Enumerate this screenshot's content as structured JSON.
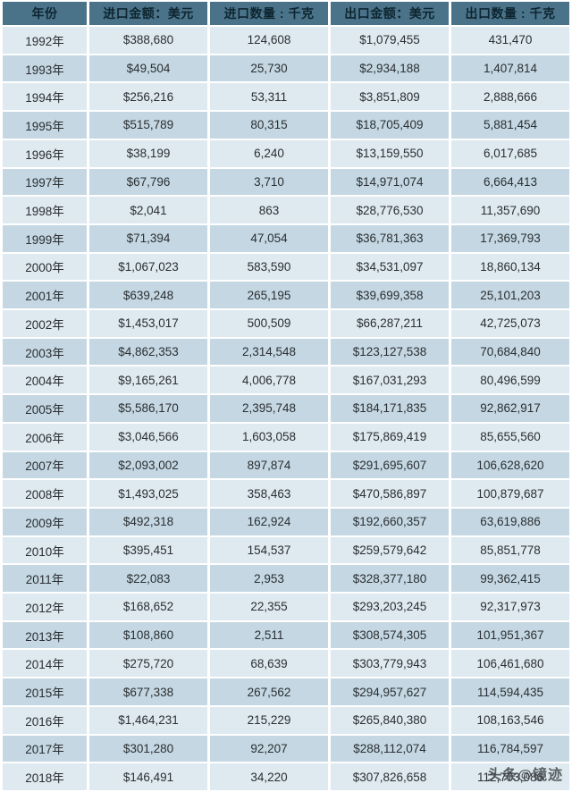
{
  "chart_data": {
    "type": "table",
    "title": "",
    "columns": [
      "年份",
      "进口金额：美元",
      "进口数量 : 千克",
      "出口金额：美元",
      "出口数量 : 千克"
    ],
    "rows": [
      [
        "1992年",
        "$388,680",
        "124,608",
        "$1,079,455",
        "431,470"
      ],
      [
        "1993年",
        "$49,504",
        "25,730",
        "$2,934,188",
        "1,407,814"
      ],
      [
        "1994年",
        "$256,216",
        "53,311",
        "$3,851,809",
        "2,888,666"
      ],
      [
        "1995年",
        "$515,789",
        "80,315",
        "$18,705,409",
        "5,881,454"
      ],
      [
        "1996年",
        "$38,199",
        "6,240",
        "$13,159,550",
        "6,017,685"
      ],
      [
        "1997年",
        "$67,796",
        "3,710",
        "$14,971,074",
        "6,664,413"
      ],
      [
        "1998年",
        "$2,041",
        "863",
        "$28,776,530",
        "11,357,690"
      ],
      [
        "1999年",
        "$71,394",
        "47,054",
        "$36,781,363",
        "17,369,793"
      ],
      [
        "2000年",
        "$1,067,023",
        "583,590",
        "$34,531,097",
        "18,860,134"
      ],
      [
        "2001年",
        "$639,248",
        "265,195",
        "$39,699,358",
        "25,101,203"
      ],
      [
        "2002年",
        "$1,453,017",
        "500,509",
        "$66,287,211",
        "42,725,073"
      ],
      [
        "2003年",
        "$4,862,353",
        "2,314,548",
        "$123,127,538",
        "70,684,840"
      ],
      [
        "2004年",
        "$9,165,261",
        "4,006,778",
        "$167,031,293",
        "80,496,599"
      ],
      [
        "2005年",
        "$5,586,170",
        "2,395,748",
        "$184,171,835",
        "92,862,917"
      ],
      [
        "2006年",
        "$3,046,566",
        "1,603,058",
        "$175,869,419",
        "85,655,560"
      ],
      [
        "2007年",
        "$2,093,002",
        "897,874",
        "$291,695,607",
        "106,628,620"
      ],
      [
        "2008年",
        "$1,493,025",
        "358,463",
        "$470,586,897",
        "100,879,687"
      ],
      [
        "2009年",
        "$492,318",
        "162,924",
        "$192,660,357",
        "63,619,886"
      ],
      [
        "2010年",
        "$395,451",
        "154,537",
        "$259,579,642",
        "85,851,778"
      ],
      [
        "2011年",
        "$22,083",
        "2,953",
        "$328,377,180",
        "99,362,415"
      ],
      [
        "2012年",
        "$168,652",
        "22,355",
        "$293,203,245",
        "92,317,973"
      ],
      [
        "2013年",
        "$108,860",
        "2,511",
        "$308,574,305",
        "101,951,367"
      ],
      [
        "2014年",
        "$275,720",
        "68,639",
        "$303,779,943",
        "106,461,680"
      ],
      [
        "2015年",
        "$677,338",
        "267,562",
        "$294,957,627",
        "114,594,435"
      ],
      [
        "2016年",
        "$1,464,231",
        "215,229",
        "$265,840,380",
        "108,163,546"
      ],
      [
        "2017年",
        "$301,280",
        "92,207",
        "$288,112,074",
        "116,784,597"
      ],
      [
        "2018年",
        "$146,491",
        "34,220",
        "$307,826,658",
        "112,703,086"
      ]
    ],
    "layout_hints": {
      "striped": true,
      "header_background": "#4A7389",
      "row_light": "#DEE9F0",
      "row_dark": "#C4D7E2",
      "grid": "white 2-3px gaps between cells"
    }
  },
  "watermark": {
    "text": "头条@镜迹"
  },
  "colors": {
    "header_bg": "#4A7389",
    "header_text": "#0E2530",
    "row_light": "#DEE9F0",
    "row_dark": "#C4D7E2",
    "cell_text": "#2B2F33",
    "background": "#FFFFFF"
  }
}
